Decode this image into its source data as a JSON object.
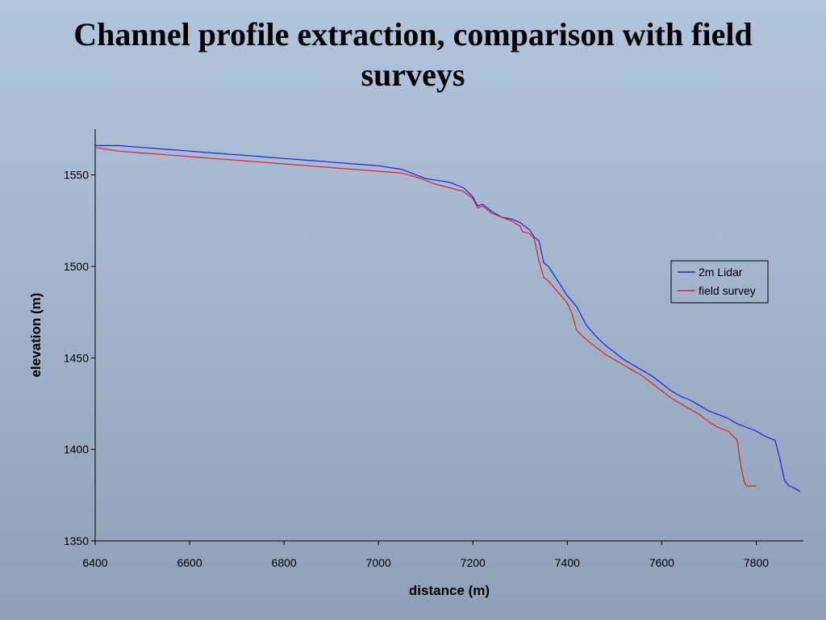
{
  "slide": {
    "title": "Channel profile extraction, comparison with field surveys"
  },
  "chart_data": {
    "type": "line",
    "title": "",
    "xlabel": "distance (m)",
    "ylabel": "elevation (m)",
    "xlim": [
      6400,
      7900
    ],
    "ylim": [
      1350,
      1575
    ],
    "xticks": [
      6400,
      6600,
      6800,
      7000,
      7200,
      7400,
      7600,
      7800
    ],
    "yticks": [
      1350,
      1400,
      1450,
      1500,
      1550
    ],
    "grid": false,
    "legend_position": "right",
    "series": [
      {
        "name": "2m Lidar",
        "color": "#1f1fe8",
        "x": [
          6400,
          6450,
          6500,
          6550,
          6600,
          6650,
          6700,
          6750,
          6800,
          6850,
          6900,
          6950,
          7000,
          7050,
          7080,
          7100,
          7150,
          7180,
          7200,
          7210,
          7220,
          7240,
          7260,
          7280,
          7300,
          7320,
          7330,
          7340,
          7350,
          7360,
          7380,
          7400,
          7420,
          7440,
          7460,
          7480,
          7500,
          7520,
          7540,
          7560,
          7580,
          7600,
          7620,
          7640,
          7660,
          7680,
          7700,
          7720,
          7740,
          7760,
          7780,
          7800,
          7820,
          7840,
          7850,
          7860,
          7870,
          7880,
          7893
        ],
        "y": [
          1566,
          1566,
          1565,
          1564,
          1563,
          1562,
          1561,
          1560,
          1559,
          1558,
          1557,
          1556,
          1555,
          1553,
          1550,
          1548,
          1546,
          1543,
          1538,
          1533,
          1534,
          1530,
          1527,
          1526,
          1524,
          1520,
          1516,
          1514,
          1502,
          1500,
          1492,
          1484,
          1478,
          1468,
          1462,
          1457,
          1453,
          1449,
          1446,
          1443,
          1440,
          1436,
          1432,
          1429,
          1427,
          1424,
          1421,
          1419,
          1417,
          1414,
          1412,
          1410,
          1407,
          1405,
          1395,
          1383,
          1380,
          1379,
          1377
        ]
      },
      {
        "name": "field survey",
        "color": "#e81f1f",
        "x": [
          6400,
          6450,
          6500,
          6550,
          6600,
          6650,
          6700,
          6750,
          6800,
          6850,
          6900,
          6950,
          7000,
          7050,
          7090,
          7120,
          7150,
          7180,
          7200,
          7210,
          7220,
          7240,
          7260,
          7280,
          7300,
          7305,
          7320,
          7330,
          7340,
          7350,
          7360,
          7380,
          7400,
          7410,
          7420,
          7440,
          7460,
          7480,
          7500,
          7520,
          7540,
          7560,
          7580,
          7600,
          7620,
          7640,
          7660,
          7680,
          7700,
          7720,
          7740,
          7760,
          7765,
          7770,
          7775,
          7780,
          7790,
          7800
        ],
        "y": [
          1565,
          1563,
          1562,
          1561,
          1560,
          1559,
          1558,
          1557,
          1556,
          1555,
          1554,
          1553,
          1552,
          1551,
          1548,
          1545,
          1543,
          1541,
          1537,
          1532,
          1533,
          1529,
          1527,
          1525,
          1522,
          1519,
          1518,
          1515,
          1503,
          1494,
          1492,
          1486,
          1480,
          1474,
          1465,
          1460,
          1456,
          1452,
          1449,
          1446,
          1443,
          1440,
          1436,
          1432,
          1428,
          1425,
          1422,
          1419,
          1415,
          1412,
          1410,
          1405,
          1395,
          1388,
          1382,
          1380,
          1380,
          1380
        ]
      }
    ]
  }
}
